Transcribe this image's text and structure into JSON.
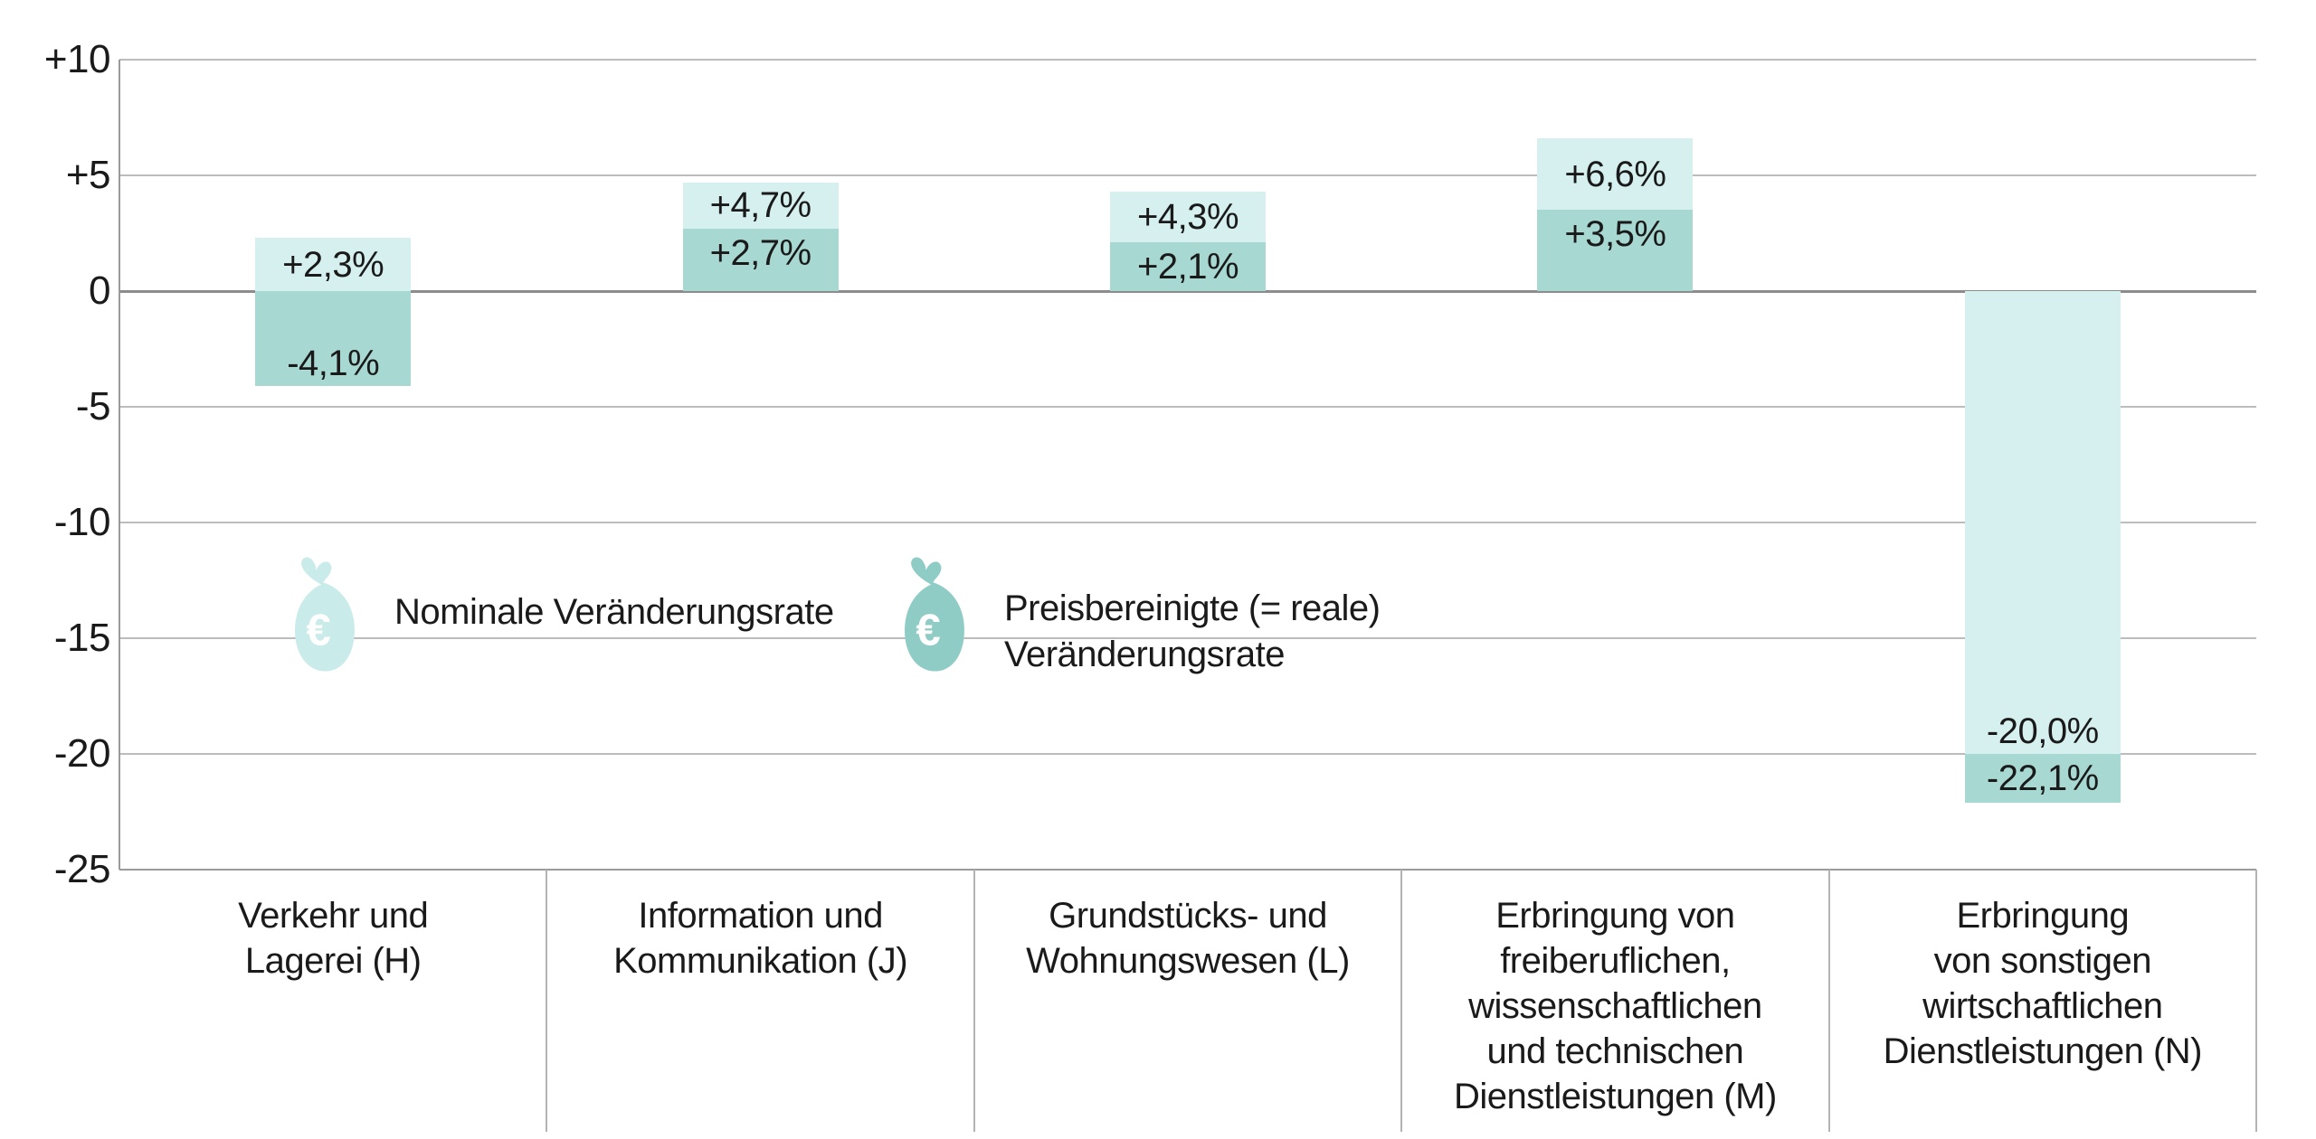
{
  "chart_data": {
    "type": "bar",
    "title": "",
    "unit": "percent",
    "categories": [
      {
        "label_lines": [
          "Verkehr und",
          "Lagerei (H)"
        ],
        "nominal": 2.3,
        "real": -4.1,
        "nominal_label": "+2,3%",
        "real_label": "-4,1%"
      },
      {
        "label_lines": [
          "Information und",
          "Kommunikation (J)"
        ],
        "nominal": 4.7,
        "real": 2.7,
        "nominal_label": "+4,7%",
        "real_label": "+2,7%"
      },
      {
        "label_lines": [
          "Grundstücks- und",
          "Wohnungswesen (L)"
        ],
        "nominal": 4.3,
        "real": 2.1,
        "nominal_label": "+4,3%",
        "real_label": "+2,1%"
      },
      {
        "label_lines": [
          "Erbringung von",
          "freiberuflichen,",
          "wissenschaftlichen",
          "und technischen",
          "Dienstleistungen (M)"
        ],
        "nominal": 6.6,
        "real": 3.5,
        "nominal_label": "+6,6%",
        "real_label": "+3,5%"
      },
      {
        "label_lines": [
          "Erbringung",
          "von sonstigen",
          "wirtschaftlichen",
          "Dienstleistungen (N)"
        ],
        "nominal": -20.0,
        "real": -22.1,
        "nominal_label": "-20,0%",
        "real_label": "-22,1%"
      }
    ],
    "series": [
      {
        "name": "Nominale Veränderungsrate",
        "values": [
          2.3,
          4.7,
          4.3,
          6.6,
          -20.0
        ]
      },
      {
        "name": "Preisbereinigte (= reale) Veränderungsrate",
        "values": [
          -4.1,
          2.7,
          2.1,
          3.5,
          -22.1
        ]
      }
    ],
    "y_axis": {
      "tick_labels": [
        "+10",
        "+5",
        "0",
        "-5",
        "-10",
        "-15",
        "-20",
        "-25"
      ],
      "tick_values": [
        10,
        5,
        0,
        -5,
        -10,
        -15,
        -20,
        -25
      ],
      "min": -25,
      "max": 10,
      "grid": true
    },
    "legend_position": "inside-middle-left",
    "colors": {
      "nominal_bar": "#d5f0ee",
      "real_bar": "#a8d8d2",
      "legend_nominal_icon": "#c9ebe9",
      "legend_real_icon": "#8fccc6",
      "gridline": "#bcbcbc",
      "zero_line": "#8c8c8c",
      "text": "#1a1a1a"
    }
  },
  "legend": {
    "nominal": {
      "label": "Nominale Veränderungsrate"
    },
    "real": {
      "label_line1": "Preisbereinigte (= reale)",
      "label_line2": "Veränderungsrate"
    }
  }
}
